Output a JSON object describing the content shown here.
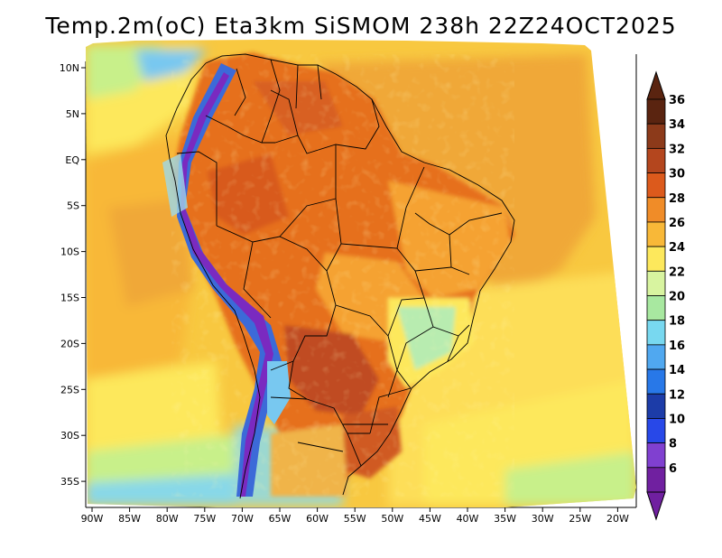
{
  "title": "Temp.2m(oC) Eta3km SiSMOM 238h 22Z24OCT2025",
  "colors": {
    "ocean_warm": "#f0a838",
    "ocean_mid": "#f8c840",
    "ocean_cool": "#fde85c",
    "ocean_cold": "#c8f08a",
    "land_hot": "#e6701e",
    "land_very_hot": "#c04c20",
    "land_warm": "#f5a232",
    "andes_cold": "#7a2ac0",
    "andes_cool": "#3c6ad8",
    "border": "#000000"
  },
  "chart_data": {
    "type": "heatmap",
    "variable": "Temp.2m(oC)",
    "model": "Eta3km SiSMOM",
    "forecast_hour": "238h",
    "valid_time": "22Z24OCT2025",
    "lon_range": [
      -91,
      -20
    ],
    "lat_range": [
      -38,
      11
    ],
    "x_ticks": [
      "90W",
      "85W",
      "80W",
      "75W",
      "70W",
      "65W",
      "60W",
      "55W",
      "50W",
      "45W",
      "40W",
      "35W",
      "30W",
      "25W",
      "20W"
    ],
    "x_tick_values": [
      -90,
      -85,
      -80,
      -75,
      -70,
      -65,
      -60,
      -55,
      -50,
      -45,
      -40,
      -35,
      -30,
      -25,
      -20
    ],
    "y_ticks": [
      "10N",
      "5N",
      "EQ",
      "5S",
      "10S",
      "15S",
      "20S",
      "25S",
      "30S",
      "35S"
    ],
    "y_tick_values": [
      10,
      5,
      0,
      -5,
      -10,
      -15,
      -20,
      -25,
      -30,
      -35
    ],
    "colorbar": {
      "labels": [
        "36",
        "34",
        "32",
        "30",
        "28",
        "26",
        "24",
        "22",
        "20",
        "18",
        "16",
        "14",
        "12",
        "10",
        "8",
        "6"
      ],
      "colors": [
        "#5a2410",
        "#8c3a1a",
        "#b4461e",
        "#dc5a1c",
        "#f08c28",
        "#f8b838",
        "#fde85c",
        "#d8f4a0",
        "#a8e8a0",
        "#78d8f0",
        "#50a8f0",
        "#2878e8",
        "#1c3ca8",
        "#2848e8",
        "#8040d0",
        "#7020a0"
      ]
    }
  }
}
